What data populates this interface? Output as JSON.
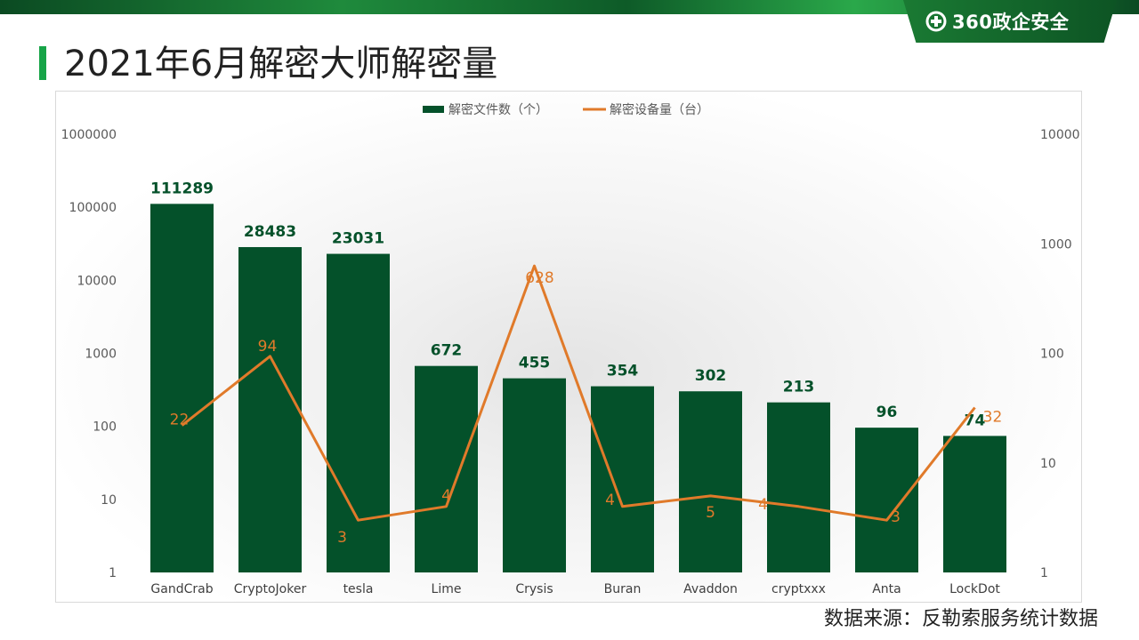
{
  "brand": {
    "name": "360政企安全",
    "logo_icon": "plus-circle-icon"
  },
  "page": {
    "title": "2021年6月解密大师解密量",
    "source": "数据来源：反勒索服务统计数据"
  },
  "colors": {
    "bar": "#04512a",
    "line": "#e07a2a",
    "accent": "#17a448"
  },
  "chart_data": {
    "type": "bar",
    "categories": [
      "GandCrab",
      "CryptoJoker",
      "tesla",
      "Lime",
      "Crysis",
      "Buran",
      "Avaddon",
      "cryptxxx",
      "Anta",
      "LockDot"
    ],
    "series": [
      {
        "name": "解密文件数（个）",
        "type": "bar",
        "axis": "left",
        "values": [
          111289,
          28483,
          23031,
          672,
          455,
          354,
          302,
          213,
          96,
          74
        ]
      },
      {
        "name": "解密设备量（台）",
        "type": "line",
        "axis": "right",
        "values": [
          22,
          94,
          3,
          4,
          628,
          4,
          5,
          4,
          3,
          32
        ]
      }
    ],
    "y_left": {
      "scale": "log",
      "ticks": [
        "1",
        "10",
        "100",
        "1000",
        "10000",
        "100000",
        "1000000"
      ],
      "range": [
        1,
        1000000
      ]
    },
    "y_right": {
      "scale": "log",
      "ticks": [
        "1",
        "10",
        "100",
        "1000",
        "10000"
      ],
      "range": [
        1,
        10000
      ]
    },
    "legend": "top-center",
    "grid": false
  }
}
